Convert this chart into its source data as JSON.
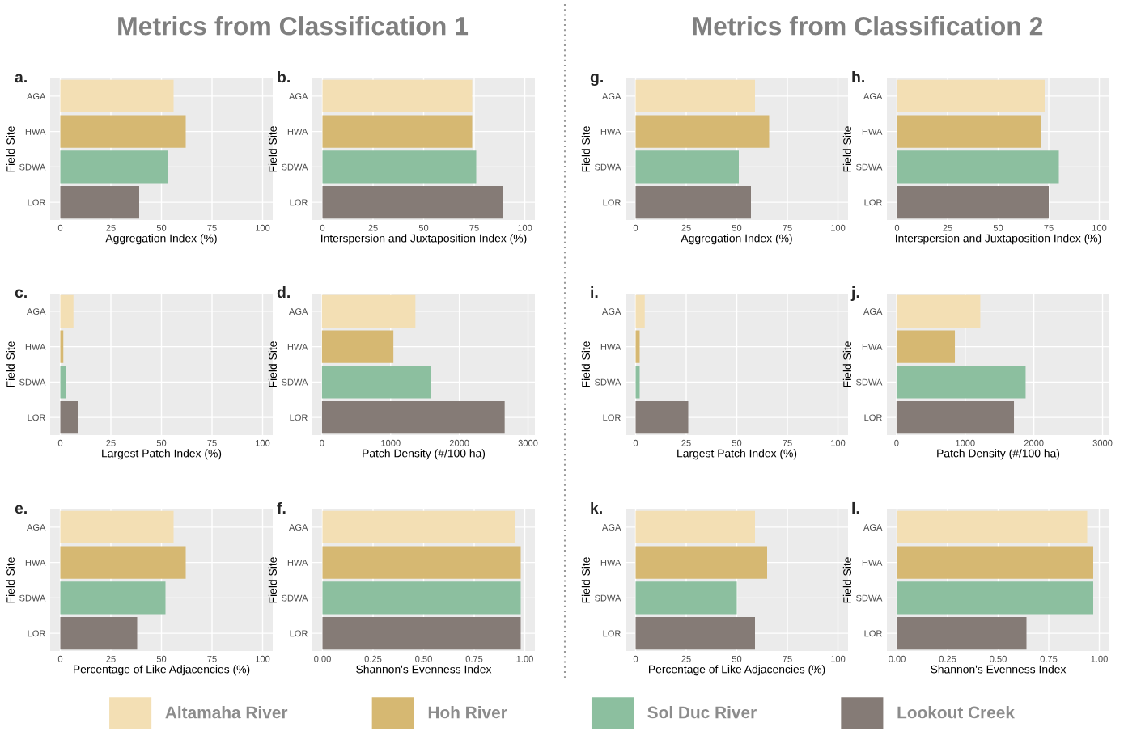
{
  "chart_data": [
    {
      "type": "bar",
      "orientation": "horizontal",
      "title": "Metrics from Classification 1",
      "annotations": [
        "a."
      ],
      "categories": [
        "AGA",
        "HWA",
        "SDWA",
        "LOR"
      ],
      "xlabel": "Aggregation Index (%)",
      "ylabel": "Field Site",
      "xlim": [
        -5,
        105
      ],
      "xticks": [
        0,
        25,
        50,
        75,
        100
      ],
      "grid": true,
      "legend": "bottom",
      "series": [
        {
          "name": "Altamaha River",
          "color": "#f3dfb4",
          "values": [
            56,
            null,
            null,
            null
          ]
        },
        {
          "name": "Hoh River",
          "color": "#d6b872",
          "values": [
            null,
            62,
            null,
            null
          ]
        },
        {
          "name": "Sol Duc River",
          "color": "#8cbf9f",
          "values": [
            null,
            null,
            53,
            null
          ]
        },
        {
          "name": "Lookout Creek",
          "color": "#857b76",
          "values": [
            null,
            null,
            null,
            39
          ]
        }
      ]
    },
    {
      "type": "bar",
      "orientation": "horizontal",
      "annotations": [
        "b."
      ],
      "categories": [
        "AGA",
        "HWA",
        "SDWA",
        "LOR"
      ],
      "xlabel": "Interspersion and Juxtaposition Index (%)",
      "ylabel": "Field Site",
      "xlim": [
        -5,
        105
      ],
      "xticks": [
        0,
        25,
        50,
        75,
        100
      ],
      "grid": true,
      "series": [
        {
          "color": "#f3dfb4",
          "values": [
            74,
            null,
            null,
            null
          ]
        },
        {
          "color": "#d6b872",
          "values": [
            null,
            74,
            null,
            null
          ]
        },
        {
          "color": "#8cbf9f",
          "values": [
            null,
            null,
            76,
            null
          ]
        },
        {
          "color": "#857b76",
          "values": [
            null,
            null,
            null,
            89
          ]
        }
      ]
    },
    {
      "type": "bar",
      "orientation": "horizontal",
      "annotations": [
        "c."
      ],
      "categories": [
        "AGA",
        "HWA",
        "SDWA",
        "LOR"
      ],
      "xlabel": "Largest Patch Index (%)",
      "ylabel": "Field Site",
      "xlim": [
        -5,
        105
      ],
      "xticks": [
        0,
        25,
        50,
        75,
        100
      ],
      "grid": true,
      "series": [
        {
          "color": "#f3dfb4",
          "values": [
            6.5,
            null,
            null,
            null
          ]
        },
        {
          "color": "#d6b872",
          "values": [
            null,
            1.5,
            null,
            null
          ]
        },
        {
          "color": "#8cbf9f",
          "values": [
            null,
            null,
            3,
            null
          ]
        },
        {
          "color": "#857b76",
          "values": [
            null,
            null,
            null,
            9
          ]
        }
      ]
    },
    {
      "type": "bar",
      "orientation": "horizontal",
      "annotations": [
        "d."
      ],
      "categories": [
        "AGA",
        "HWA",
        "SDWA",
        "LOR"
      ],
      "xlabel": "Patch Density (#/100 ha)",
      "ylabel": "Field Site",
      "xlim": [
        -140,
        3100
      ],
      "xticks": [
        0,
        1000,
        2000,
        3000
      ],
      "grid": true,
      "series": [
        {
          "color": "#f3dfb4",
          "values": [
            1360,
            null,
            null,
            null
          ]
        },
        {
          "color": "#d6b872",
          "values": [
            null,
            1040,
            null,
            null
          ]
        },
        {
          "color": "#8cbf9f",
          "values": [
            null,
            null,
            1580,
            null
          ]
        },
        {
          "color": "#857b76",
          "values": [
            null,
            null,
            null,
            2660
          ]
        }
      ]
    },
    {
      "type": "bar",
      "orientation": "horizontal",
      "annotations": [
        "e."
      ],
      "categories": [
        "AGA",
        "HWA",
        "SDWA",
        "LOR"
      ],
      "xlabel": "Percentage of Like Adjacencies (%)",
      "ylabel": "Field Site",
      "xlim": [
        -5,
        105
      ],
      "xticks": [
        0,
        25,
        50,
        75,
        100
      ],
      "grid": true,
      "series": [
        {
          "color": "#f3dfb4",
          "values": [
            56,
            null,
            null,
            null
          ]
        },
        {
          "color": "#d6b872",
          "values": [
            null,
            62,
            null,
            null
          ]
        },
        {
          "color": "#8cbf9f",
          "values": [
            null,
            null,
            52,
            null
          ]
        },
        {
          "color": "#857b76",
          "values": [
            null,
            null,
            null,
            38
          ]
        }
      ]
    },
    {
      "type": "bar",
      "orientation": "horizontal",
      "annotations": [
        "f."
      ],
      "categories": [
        "AGA",
        "HWA",
        "SDWA",
        "LOR"
      ],
      "xlabel": "Shannon's Evenness Index",
      "ylabel": "Field Site",
      "xlim": [
        -0.05,
        1.05
      ],
      "xticks": [
        {
          "value": 0,
          "label": "0.00"
        },
        {
          "value": 0.25,
          "label": "0.25"
        },
        {
          "value": 0.5,
          "label": "0.50"
        },
        {
          "value": 0.75,
          "label": "0.75"
        },
        {
          "value": 1,
          "label": "1.00"
        }
      ],
      "grid": true,
      "series": [
        {
          "color": "#f3dfb4",
          "values": [
            0.95,
            null,
            null,
            null
          ]
        },
        {
          "color": "#d6b872",
          "values": [
            null,
            0.98,
            null,
            null
          ]
        },
        {
          "color": "#8cbf9f",
          "values": [
            null,
            null,
            0.98,
            null
          ]
        },
        {
          "color": "#857b76",
          "values": [
            null,
            null,
            null,
            0.98
          ]
        }
      ]
    },
    {
      "type": "bar",
      "orientation": "horizontal",
      "title": "Metrics from Classification 2",
      "annotations": [
        "g."
      ],
      "categories": [
        "AGA",
        "HWA",
        "SDWA",
        "LOR"
      ],
      "xlabel": "Aggregation Index (%)",
      "ylabel": "Field Site",
      "xlim": [
        -5,
        105
      ],
      "xticks": [
        0,
        25,
        50,
        75,
        100
      ],
      "grid": true,
      "series": [
        {
          "color": "#f3dfb4",
          "values": [
            59,
            null,
            null,
            null
          ]
        },
        {
          "color": "#d6b872",
          "values": [
            null,
            66,
            null,
            null
          ]
        },
        {
          "color": "#8cbf9f",
          "values": [
            null,
            null,
            51,
            null
          ]
        },
        {
          "color": "#857b76",
          "values": [
            null,
            null,
            null,
            57
          ]
        }
      ]
    },
    {
      "type": "bar",
      "orientation": "horizontal",
      "annotations": [
        "h."
      ],
      "categories": [
        "AGA",
        "HWA",
        "SDWA",
        "LOR"
      ],
      "xlabel": "Interspersion and Juxtaposition Index (%)",
      "ylabel": "Field Site",
      "xlim": [
        -5,
        105
      ],
      "xticks": [
        0,
        25,
        50,
        75,
        100
      ],
      "grid": true,
      "series": [
        {
          "color": "#f3dfb4",
          "values": [
            73,
            null,
            null,
            null
          ]
        },
        {
          "color": "#d6b872",
          "values": [
            null,
            71,
            null,
            null
          ]
        },
        {
          "color": "#8cbf9f",
          "values": [
            null,
            null,
            80,
            null
          ]
        },
        {
          "color": "#857b76",
          "values": [
            null,
            null,
            null,
            75
          ]
        }
      ]
    },
    {
      "type": "bar",
      "orientation": "horizontal",
      "annotations": [
        "i."
      ],
      "categories": [
        "AGA",
        "HWA",
        "SDWA",
        "LOR"
      ],
      "xlabel": "Largest Patch Index (%)",
      "ylabel": "Field Site",
      "xlim": [
        -5,
        105
      ],
      "xticks": [
        0,
        25,
        50,
        75,
        100
      ],
      "grid": true,
      "series": [
        {
          "color": "#f3dfb4",
          "values": [
            4.5,
            null,
            null,
            null
          ]
        },
        {
          "color": "#d6b872",
          "values": [
            null,
            2,
            null,
            null
          ]
        },
        {
          "color": "#8cbf9f",
          "values": [
            null,
            null,
            2,
            null
          ]
        },
        {
          "color": "#857b76",
          "values": [
            null,
            null,
            null,
            26
          ]
        }
      ]
    },
    {
      "type": "bar",
      "orientation": "horizontal",
      "annotations": [
        "j."
      ],
      "categories": [
        "AGA",
        "HWA",
        "SDWA",
        "LOR"
      ],
      "xlabel": "Patch Density (#/100 ha)",
      "ylabel": "Field Site",
      "xlim": [
        -140,
        3100
      ],
      "xticks": [
        0,
        1000,
        2000,
        3000
      ],
      "grid": true,
      "series": [
        {
          "color": "#f3dfb4",
          "values": [
            1220,
            null,
            null,
            null
          ]
        },
        {
          "color": "#d6b872",
          "values": [
            null,
            850,
            null,
            null
          ]
        },
        {
          "color": "#8cbf9f",
          "values": [
            null,
            null,
            1880,
            null
          ]
        },
        {
          "color": "#857b76",
          "values": [
            null,
            null,
            null,
            1710
          ]
        }
      ]
    },
    {
      "type": "bar",
      "orientation": "horizontal",
      "annotations": [
        "k."
      ],
      "categories": [
        "AGA",
        "HWA",
        "SDWA",
        "LOR"
      ],
      "xlabel": "Percentage of Like Adjacencies (%)",
      "ylabel": "Field Site",
      "xlim": [
        -5,
        105
      ],
      "xticks": [
        0,
        25,
        50,
        75,
        100
      ],
      "grid": true,
      "series": [
        {
          "color": "#f3dfb4",
          "values": [
            59,
            null,
            null,
            null
          ]
        },
        {
          "color": "#d6b872",
          "values": [
            null,
            65,
            null,
            null
          ]
        },
        {
          "color": "#8cbf9f",
          "values": [
            null,
            null,
            50,
            null
          ]
        },
        {
          "color": "#857b76",
          "values": [
            null,
            null,
            null,
            59
          ]
        }
      ]
    },
    {
      "type": "bar",
      "orientation": "horizontal",
      "annotations": [
        "l."
      ],
      "categories": [
        "AGA",
        "HWA",
        "SDWA",
        "LOR"
      ],
      "xlabel": "Shannon's Evenness Index",
      "ylabel": "Field Site",
      "xlim": [
        -0.05,
        1.05
      ],
      "xticks": [
        {
          "value": 0,
          "label": "0.00"
        },
        {
          "value": 0.25,
          "label": "0.25"
        },
        {
          "value": 0.5,
          "label": "0.50"
        },
        {
          "value": 0.75,
          "label": "0.75"
        },
        {
          "value": 1,
          "label": "1.00"
        }
      ],
      "grid": true,
      "series": [
        {
          "color": "#f3dfb4",
          "values": [
            0.94,
            null,
            null,
            null
          ]
        },
        {
          "color": "#d6b872",
          "values": [
            null,
            0.97,
            null,
            null
          ]
        },
        {
          "color": "#8cbf9f",
          "values": [
            null,
            null,
            0.97,
            null
          ]
        },
        {
          "color": "#857b76",
          "values": [
            null,
            null,
            null,
            0.64
          ]
        }
      ]
    }
  ]
}
